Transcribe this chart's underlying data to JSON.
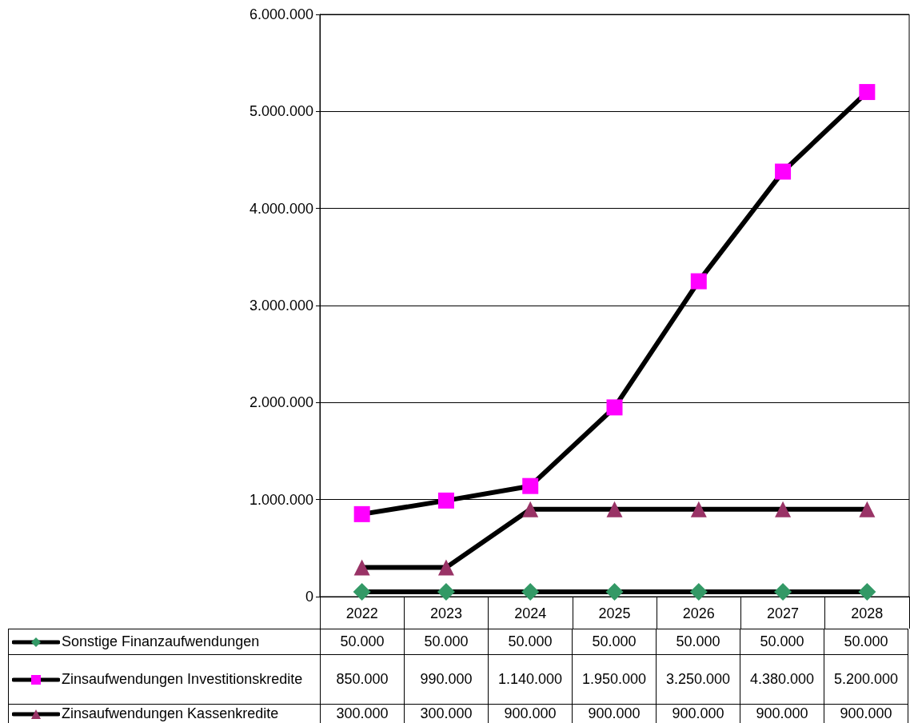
{
  "chart_data": {
    "type": "line",
    "categories": [
      "2022",
      "2023",
      "2024",
      "2025",
      "2026",
      "2027",
      "2028"
    ],
    "series": [
      {
        "name": "Sonstige Finanzaufwendungen",
        "color": "#339966",
        "marker": "diamond",
        "values": [
          50000,
          50000,
          50000,
          50000,
          50000,
          50000,
          50000
        ],
        "value_labels": [
          "50.000",
          "50.000",
          "50.000",
          "50.000",
          "50.000",
          "50.000",
          "50.000"
        ]
      },
      {
        "name": "Zinsaufwendungen Investitionskredite",
        "color": "#ff00ff",
        "marker": "square",
        "values": [
          850000,
          990000,
          1140000,
          1950000,
          3250000,
          4380000,
          5200000
        ],
        "value_labels": [
          "850.000",
          "990.000",
          "1.140.000",
          "1.950.000",
          "3.250.000",
          "4.380.000",
          "5.200.000"
        ]
      },
      {
        "name": "Zinsaufwendungen Kassenkredite",
        "color": "#993366",
        "marker": "triangle",
        "values": [
          300000,
          300000,
          900000,
          900000,
          900000,
          900000,
          900000
        ],
        "value_labels": [
          "300.000",
          "300.000",
          "900.000",
          "900.000",
          "900.000",
          "900.000",
          "900.000"
        ]
      }
    ],
    "ylim": [
      0,
      6000000
    ],
    "yticks": [
      0,
      {
        "value": 1000000,
        "label": "1.000.000"
      },
      {
        "value": 2000000,
        "label": "2.000.000"
      },
      {
        "value": 3000000,
        "label": "3.000.000"
      },
      {
        "value": 4000000,
        "label": "4.000.000"
      },
      {
        "value": 5000000,
        "label": "5.000.000"
      },
      {
        "value": 6000000,
        "label": "6.000.000"
      }
    ],
    "grid": "y",
    "legend": "bottom",
    "line_style": "solid"
  }
}
